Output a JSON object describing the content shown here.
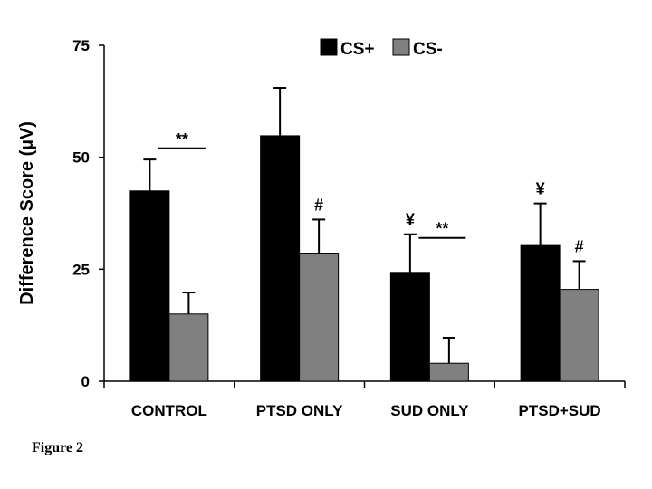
{
  "figure_caption": "Figure 2",
  "chart_data": {
    "type": "bar",
    "title": "",
    "xlabel": "",
    "ylabel": "Difference Score  (µV)",
    "ylim": [
      0,
      75
    ],
    "yticks": [
      0,
      25,
      50,
      75
    ],
    "categories": [
      "CONTROL",
      "PTSD ONLY",
      "SUD ONLY",
      "PTSD+SUD"
    ],
    "legend_position": "top-center",
    "series": [
      {
        "name": "CS+",
        "color": "#000000",
        "values": [
          42.5,
          54.8,
          24.3,
          30.5
        ],
        "errors": [
          7.0,
          10.7,
          8.5,
          9.2
        ]
      },
      {
        "name": "CS-",
        "color": "#808080",
        "values": [
          15.0,
          28.6,
          4.0,
          20.5
        ],
        "errors": [
          4.8,
          7.5,
          5.7,
          6.3
        ]
      }
    ],
    "annotations": [
      {
        "text": "**",
        "type": "bracket",
        "category": 0,
        "level": 52
      },
      {
        "text": "#",
        "type": "marker",
        "category": 1,
        "series": 1
      },
      {
        "text": "¥",
        "type": "marker",
        "category": 2,
        "series": 0
      },
      {
        "text": "**",
        "type": "bracket",
        "category": 2,
        "level": 32
      },
      {
        "text": "¥",
        "type": "marker",
        "category": 3,
        "series": 0
      },
      {
        "text": "#",
        "type": "marker",
        "category": 3,
        "series": 1
      }
    ]
  }
}
